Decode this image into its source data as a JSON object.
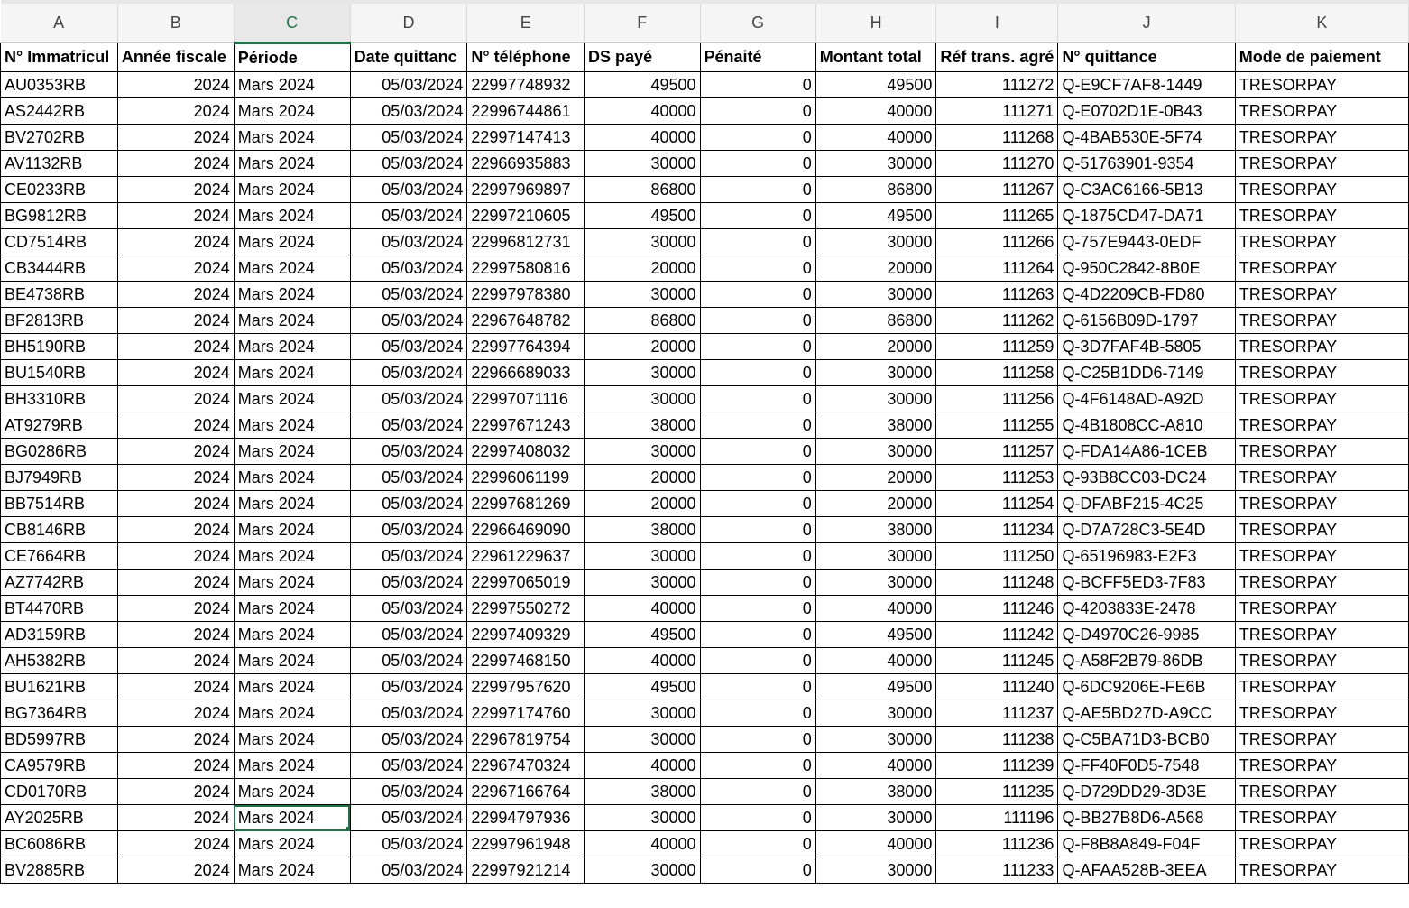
{
  "columns": [
    "A",
    "B",
    "C",
    "D",
    "E",
    "F",
    "G",
    "H",
    "I",
    "J",
    "K"
  ],
  "selected_column": "C",
  "selected_cell": {
    "column": "C",
    "row_index": 28
  },
  "accent_color": "#217346",
  "headers": [
    "N° Immatricul",
    "Année fiscale",
    "Période",
    "Date quittanc",
    "N° téléphone",
    "DS payé",
    "Pénaité",
    "Montant total",
    "Réf trans. agré",
    "N° quittance",
    "Mode de paiement"
  ],
  "rows": [
    [
      "AU0353RB",
      "2024",
      "Mars 2024",
      "05/03/2024",
      "22997748932",
      "49500",
      "0",
      "49500",
      "111272",
      "Q-E9CF7AF8-1449",
      "TRESORPAY"
    ],
    [
      "AS2442RB",
      "2024",
      "Mars 2024",
      "05/03/2024",
      "22996744861",
      "40000",
      "0",
      "40000",
      "111271",
      "Q-E0702D1E-0B43",
      "TRESORPAY"
    ],
    [
      "BV2702RB",
      "2024",
      "Mars 2024",
      "05/03/2024",
      "22997147413",
      "40000",
      "0",
      "40000",
      "111268",
      "Q-4BAB530E-5F74",
      "TRESORPAY"
    ],
    [
      "AV1132RB",
      "2024",
      "Mars 2024",
      "05/03/2024",
      "22966935883",
      "30000",
      "0",
      "30000",
      "111270",
      "Q-51763901-9354",
      "TRESORPAY"
    ],
    [
      "CE0233RB",
      "2024",
      "Mars 2024",
      "05/03/2024",
      "22997969897",
      "86800",
      "0",
      "86800",
      "111267",
      "Q-C3AC6166-5B13",
      "TRESORPAY"
    ],
    [
      "BG9812RB",
      "2024",
      "Mars 2024",
      "05/03/2024",
      "22997210605",
      "49500",
      "0",
      "49500",
      "111265",
      "Q-1875CD47-DA71",
      "TRESORPAY"
    ],
    [
      "CD7514RB",
      "2024",
      "Mars 2024",
      "05/03/2024",
      "22996812731",
      "30000",
      "0",
      "30000",
      "111266",
      "Q-757E9443-0EDF",
      "TRESORPAY"
    ],
    [
      "CB3444RB",
      "2024",
      "Mars 2024",
      "05/03/2024",
      "22997580816",
      "20000",
      "0",
      "20000",
      "111264",
      "Q-950C2842-8B0E",
      "TRESORPAY"
    ],
    [
      "BE4738RB",
      "2024",
      "Mars 2024",
      "05/03/2024",
      "22997978380",
      "30000",
      "0",
      "30000",
      "111263",
      "Q-4D2209CB-FD80",
      "TRESORPAY"
    ],
    [
      "BF2813RB",
      "2024",
      "Mars 2024",
      "05/03/2024",
      "22967648782",
      "86800",
      "0",
      "86800",
      "111262",
      "Q-6156B09D-1797",
      "TRESORPAY"
    ],
    [
      "BH5190RB",
      "2024",
      "Mars 2024",
      "05/03/2024",
      "22997764394",
      "20000",
      "0",
      "20000",
      "111259",
      "Q-3D7FAF4B-5805",
      "TRESORPAY"
    ],
    [
      "BU1540RB",
      "2024",
      "Mars 2024",
      "05/03/2024",
      "22966689033",
      "30000",
      "0",
      "30000",
      "111258",
      "Q-C25B1DD6-7149",
      "TRESORPAY"
    ],
    [
      "BH3310RB",
      "2024",
      "Mars 2024",
      "05/03/2024",
      "22997071116",
      "30000",
      "0",
      "30000",
      "111256",
      "Q-4F6148AD-A92D",
      "TRESORPAY"
    ],
    [
      "AT9279RB",
      "2024",
      "Mars 2024",
      "05/03/2024",
      "22997671243",
      "38000",
      "0",
      "38000",
      "111255",
      "Q-4B1808CC-A810",
      "TRESORPAY"
    ],
    [
      "BG0286RB",
      "2024",
      "Mars 2024",
      "05/03/2024",
      "22997408032",
      "30000",
      "0",
      "30000",
      "111257",
      "Q-FDA14A86-1CEB",
      "TRESORPAY"
    ],
    [
      "BJ7949RB",
      "2024",
      "Mars 2024",
      "05/03/2024",
      "22996061199",
      "20000",
      "0",
      "20000",
      "111253",
      "Q-93B8CC03-DC24",
      "TRESORPAY"
    ],
    [
      "BB7514RB",
      "2024",
      "Mars 2024",
      "05/03/2024",
      "22997681269",
      "20000",
      "0",
      "20000",
      "111254",
      "Q-DFABF215-4C25",
      "TRESORPAY"
    ],
    [
      "CB8146RB",
      "2024",
      "Mars 2024",
      "05/03/2024",
      "22966469090",
      "38000",
      "0",
      "38000",
      "111234",
      "Q-D7A728C3-5E4D",
      "TRESORPAY"
    ],
    [
      "CE7664RB",
      "2024",
      "Mars 2024",
      "05/03/2024",
      "22961229637",
      "30000",
      "0",
      "30000",
      "111250",
      "Q-65196983-E2F3",
      "TRESORPAY"
    ],
    [
      "AZ7742RB",
      "2024",
      "Mars 2024",
      "05/03/2024",
      "22997065019",
      "30000",
      "0",
      "30000",
      "111248",
      "Q-BCFF5ED3-7F83",
      "TRESORPAY"
    ],
    [
      "BT4470RB",
      "2024",
      "Mars 2024",
      "05/03/2024",
      "22997550272",
      "40000",
      "0",
      "40000",
      "111246",
      "Q-4203833E-2478",
      "TRESORPAY"
    ],
    [
      "AD3159RB",
      "2024",
      "Mars 2024",
      "05/03/2024",
      "22997409329",
      "49500",
      "0",
      "49500",
      "111242",
      "Q-D4970C26-9985",
      "TRESORPAY"
    ],
    [
      "AH5382RB",
      "2024",
      "Mars 2024",
      "05/03/2024",
      "22997468150",
      "40000",
      "0",
      "40000",
      "111245",
      "Q-A58F2B79-86DB",
      "TRESORPAY"
    ],
    [
      "BU1621RB",
      "2024",
      "Mars 2024",
      "05/03/2024",
      "22997957620",
      "49500",
      "0",
      "49500",
      "111240",
      "Q-6DC9206E-FE6B",
      "TRESORPAY"
    ],
    [
      "BG7364RB",
      "2024",
      "Mars 2024",
      "05/03/2024",
      "22997174760",
      "30000",
      "0",
      "30000",
      "111237",
      "Q-AE5BD27D-A9CC",
      "TRESORPAY"
    ],
    [
      "BD5997RB",
      "2024",
      "Mars 2024",
      "05/03/2024",
      "22967819754",
      "30000",
      "0",
      "30000",
      "111238",
      "Q-C5BA71D3-BCB0",
      "TRESORPAY"
    ],
    [
      "CA9579RB",
      "2024",
      "Mars 2024",
      "05/03/2024",
      "22967470324",
      "40000",
      "0",
      "40000",
      "111239",
      "Q-FF40F0D5-7548",
      "TRESORPAY"
    ],
    [
      "CD0170RB",
      "2024",
      "Mars 2024",
      "05/03/2024",
      "22967166764",
      "38000",
      "0",
      "38000",
      "111235",
      "Q-D729DD29-3D3E",
      "TRESORPAY"
    ],
    [
      "AY2025RB",
      "2024",
      "Mars 2024",
      "05/03/2024",
      "22994797936",
      "30000",
      "0",
      "30000",
      "111196",
      "Q-BB27B8D6-A568",
      "TRESORPAY"
    ],
    [
      "BC6086RB",
      "2024",
      "Mars 2024",
      "05/03/2024",
      "22997961948",
      "40000",
      "0",
      "40000",
      "111236",
      "Q-F8B8A849-F04F",
      "TRESORPAY"
    ],
    [
      "BV2885RB",
      "2024",
      "Mars 2024",
      "05/03/2024",
      "22997921214",
      "30000",
      "0",
      "30000",
      "111233",
      "Q-AFAA528B-3EEA",
      "TRESORPAY"
    ]
  ]
}
